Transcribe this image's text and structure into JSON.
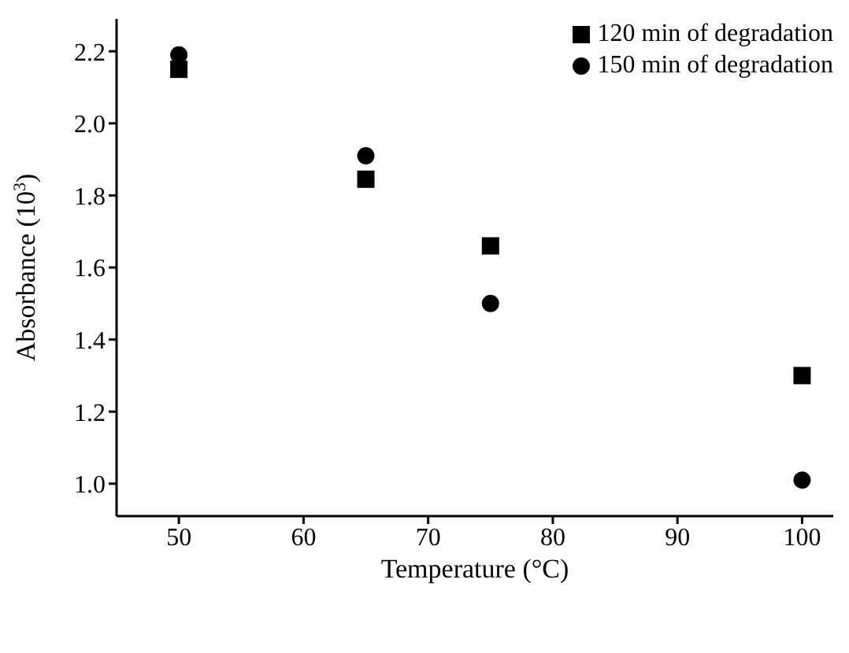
{
  "chart_data": {
    "type": "scatter",
    "xlabel": "Temperature (°C)",
    "ylabel": "Absorbance (10$^{3}$)",
    "x": [
      50,
      65,
      75,
      100
    ],
    "series": [
      {
        "name": "120 min of degradation",
        "color": "#000000",
        "marker": "square",
        "values": [
          2.15,
          1.845,
          1.66,
          1.3
        ]
      },
      {
        "name": "150 min of degradation",
        "color": "#000000",
        "marker": "circle",
        "values": [
          2.19,
          1.91,
          1.5,
          1.01
        ]
      }
    ],
    "xlim": [
      45,
      102.5
    ],
    "xticks": [
      50,
      60,
      70,
      80,
      90,
      100
    ],
    "ylim": [
      0.91,
      2.29
    ],
    "yticks": [
      {
        "value": 1.0,
        "label": "1.0"
      },
      {
        "value": 1.2,
        "label": "1.2"
      },
      {
        "value": 1.4,
        "label": "1.4"
      },
      {
        "value": 1.6,
        "label": "1.6"
      },
      {
        "value": 1.8,
        "label": "1.8"
      },
      {
        "value": 2.0,
        "label": "2.0"
      },
      {
        "value": 2.2,
        "label": "2.2"
      }
    ],
    "grid": false,
    "legend": "top right"
  }
}
